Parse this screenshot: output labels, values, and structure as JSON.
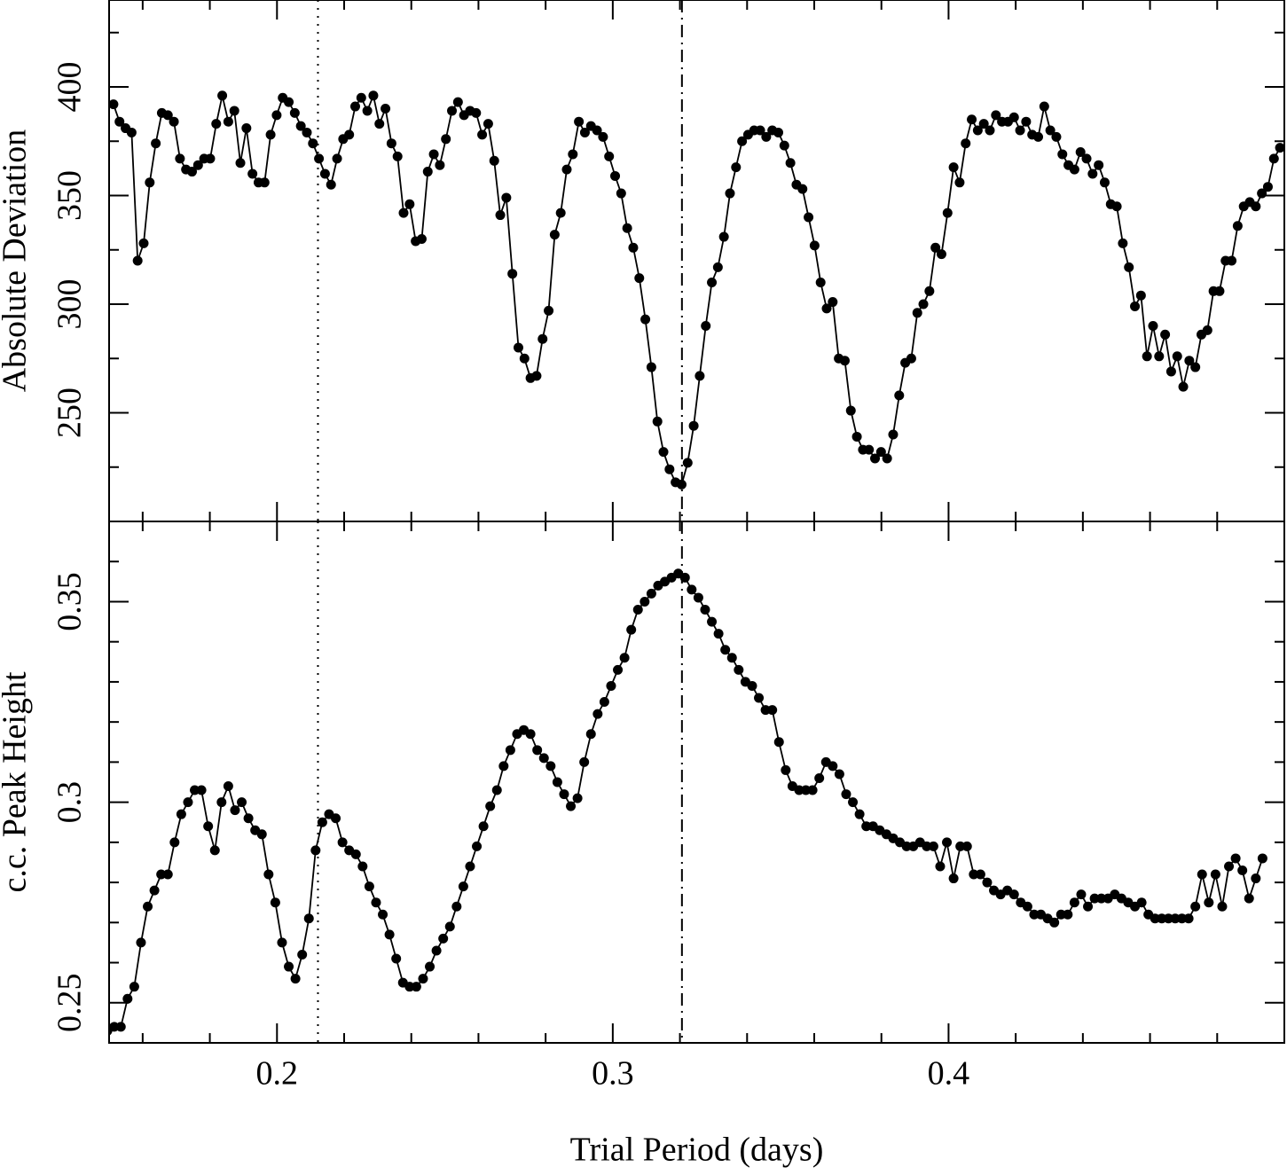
{
  "chart_data": [
    {
      "type": "line",
      "ylabel": "Absolute Deviation",
      "xlim": [
        0.15,
        0.5
      ],
      "ylim": [
        200,
        440
      ],
      "xticks": [
        0.2,
        0.3,
        0.4
      ],
      "show_xtick_labels": false,
      "x_minor_ticks": [
        0.16,
        0.18,
        0.22,
        0.24,
        0.26,
        0.28,
        0.32,
        0.34,
        0.36,
        0.38,
        0.42,
        0.44,
        0.46,
        0.48
      ],
      "yticks": [
        250,
        300,
        350,
        400
      ],
      "y_minor_ticks": [
        225,
        275,
        325,
        375,
        425
      ],
      "color": "#000000",
      "marker": "circle",
      "vlines": [
        {
          "x": 0.2122,
          "style": "dotted"
        },
        {
          "x": 0.3206,
          "style": "dashdot"
        }
      ],
      "x": [
        0.1513,
        0.1531,
        0.1549,
        0.1567,
        0.1585,
        0.1603,
        0.1621,
        0.1639,
        0.1657,
        0.1675,
        0.1693,
        0.1711,
        0.1729,
        0.1747,
        0.1765,
        0.1783,
        0.1801,
        0.1819,
        0.1837,
        0.1855,
        0.1873,
        0.1891,
        0.1909,
        0.1927,
        0.1945,
        0.1963,
        0.1981,
        0.1999,
        0.2017,
        0.2035,
        0.2053,
        0.2071,
        0.2089,
        0.2107,
        0.2125,
        0.2143,
        0.2161,
        0.2179,
        0.2197,
        0.2215,
        0.2233,
        0.2251,
        0.2269,
        0.2287,
        0.2305,
        0.2323,
        0.2341,
        0.2359,
        0.2377,
        0.2395,
        0.2413,
        0.2431,
        0.2449,
        0.2467,
        0.2485,
        0.2503,
        0.2521,
        0.2539,
        0.2557,
        0.2575,
        0.2593,
        0.2611,
        0.2629,
        0.2647,
        0.2665,
        0.2683,
        0.2701,
        0.2719,
        0.2737,
        0.2755,
        0.2773,
        0.2791,
        0.2809,
        0.2827,
        0.2845,
        0.2863,
        0.2881,
        0.2899,
        0.2917,
        0.2935,
        0.2953,
        0.2971,
        0.2989,
        0.3007,
        0.3025,
        0.3043,
        0.3061,
        0.3079,
        0.3097,
        0.3115,
        0.3133,
        0.3151,
        0.3169,
        0.3187,
        0.3205,
        0.3223,
        0.3241,
        0.3259,
        0.3277,
        0.3295,
        0.3313,
        0.3331,
        0.3349,
        0.3367,
        0.3385,
        0.3403,
        0.3421,
        0.3439,
        0.3457,
        0.3475,
        0.3493,
        0.3511,
        0.3529,
        0.3547,
        0.3565,
        0.3583,
        0.3601,
        0.3619,
        0.3637,
        0.3655,
        0.3673,
        0.3691,
        0.3709,
        0.3727,
        0.3745,
        0.3763,
        0.3781,
        0.3799,
        0.3817,
        0.3835,
        0.3853,
        0.3871,
        0.3889,
        0.3907,
        0.3925,
        0.3943,
        0.3961,
        0.3979,
        0.3997,
        0.4015,
        0.4033,
        0.4051,
        0.4069,
        0.4087,
        0.4105,
        0.4123,
        0.4141,
        0.4159,
        0.4177,
        0.4195,
        0.4213,
        0.4231,
        0.4249,
        0.4267,
        0.4285,
        0.4303,
        0.4321,
        0.4339,
        0.4357,
        0.4375,
        0.4393,
        0.4411,
        0.4429,
        0.4447,
        0.4465,
        0.4483,
        0.4501,
        0.4519,
        0.4537,
        0.4555,
        0.4573,
        0.4591,
        0.4609,
        0.4627,
        0.4645,
        0.4663,
        0.4681,
        0.4699,
        0.4717,
        0.4735,
        0.4753,
        0.4771,
        0.4789,
        0.4807,
        0.4825,
        0.4843,
        0.4861,
        0.4879,
        0.4897,
        0.4915,
        0.4933,
        0.4951,
        0.4969,
        0.4987
      ],
      "values": [
        392,
        384,
        381,
        379,
        320,
        328,
        356,
        374,
        388,
        387,
        384,
        367,
        362,
        361,
        364,
        367,
        367,
        383,
        396,
        384,
        389,
        365,
        381,
        360,
        356,
        356,
        378,
        387,
        395,
        393,
        388,
        382,
        379,
        374,
        367,
        360,
        355,
        367,
        376,
        378,
        391,
        395,
        389,
        396,
        383,
        390,
        374,
        368,
        342,
        346,
        329,
        330,
        361,
        369,
        364,
        376,
        389,
        393,
        387,
        389,
        388,
        378,
        383,
        366,
        341,
        349,
        314,
        280,
        275,
        266,
        267,
        284,
        297,
        332,
        342,
        362,
        369,
        384,
        379,
        382,
        380,
        377,
        368,
        359,
        351,
        335,
        326,
        312,
        293,
        271,
        246,
        232,
        224,
        218,
        217,
        227,
        244,
        267,
        290,
        310,
        317,
        331,
        351,
        363,
        375,
        378,
        380,
        380,
        377,
        380,
        379,
        373,
        365,
        355,
        353,
        340,
        327,
        310,
        298,
        301,
        275,
        274,
        251,
        239,
        233,
        233,
        229,
        232,
        229,
        240,
        258,
        273,
        275,
        296,
        300,
        306,
        326,
        323,
        342,
        363,
        356,
        374,
        385,
        380,
        383,
        380,
        387,
        384,
        384,
        386,
        380,
        384,
        378,
        377,
        391,
        380,
        377,
        369,
        364,
        362,
        370,
        367,
        360,
        364,
        356,
        346,
        345,
        328,
        317,
        299,
        304,
        276,
        290,
        276,
        286,
        269,
        276,
        262,
        274,
        271,
        286,
        288,
        306,
        306,
        320,
        320,
        336,
        345,
        347,
        345,
        351,
        354,
        367,
        372
      ]
    },
    {
      "type": "line",
      "ylabel": "c.c. Peak Height",
      "xlabel": "Trial Period (days)",
      "xlim": [
        0.15,
        0.5
      ],
      "ylim": [
        0.24,
        0.37
      ],
      "xticks": [
        0.2,
        0.3,
        0.4
      ],
      "show_xtick_labels": true,
      "x_minor_ticks": [
        0.16,
        0.18,
        0.22,
        0.24,
        0.26,
        0.28,
        0.32,
        0.34,
        0.36,
        0.38,
        0.42,
        0.44,
        0.46,
        0.48
      ],
      "yticks": [
        0.25,
        0.3,
        0.35
      ],
      "y_minor_ticks": [
        0.26,
        0.27,
        0.28,
        0.29,
        0.31,
        0.32,
        0.33,
        0.34,
        0.36
      ],
      "color": "#000000",
      "marker": "circle",
      "vlines": [
        {
          "x": 0.2122,
          "style": "dotted"
        },
        {
          "x": 0.3206,
          "style": "dashdot"
        }
      ],
      "x": [
        0.1495,
        0.1515,
        0.1535,
        0.1555,
        0.1575,
        0.1595,
        0.1615,
        0.1635,
        0.1655,
        0.1675,
        0.1695,
        0.1715,
        0.1735,
        0.1755,
        0.1775,
        0.1795,
        0.1815,
        0.1835,
        0.1855,
        0.1875,
        0.1895,
        0.1915,
        0.1935,
        0.1955,
        0.1975,
        0.1995,
        0.2015,
        0.2035,
        0.2055,
        0.2075,
        0.2095,
        0.2115,
        0.2135,
        0.2155,
        0.2175,
        0.2195,
        0.2215,
        0.2235,
        0.2255,
        0.2275,
        0.2295,
        0.2315,
        0.2335,
        0.2355,
        0.2375,
        0.2395,
        0.2415,
        0.2435,
        0.2455,
        0.2475,
        0.2495,
        0.2515,
        0.2535,
        0.2555,
        0.2575,
        0.2595,
        0.2615,
        0.2635,
        0.2655,
        0.2675,
        0.2695,
        0.2715,
        0.2735,
        0.2755,
        0.2775,
        0.2795,
        0.2815,
        0.2835,
        0.2855,
        0.2875,
        0.2895,
        0.2915,
        0.2935,
        0.2955,
        0.2975,
        0.2995,
        0.3015,
        0.3035,
        0.3055,
        0.3075,
        0.3095,
        0.3115,
        0.3135,
        0.3155,
        0.3175,
        0.3195,
        0.3215,
        0.3235,
        0.3255,
        0.3275,
        0.3295,
        0.3315,
        0.3335,
        0.3355,
        0.3375,
        0.3395,
        0.3415,
        0.3435,
        0.3455,
        0.3475,
        0.3495,
        0.3515,
        0.3535,
        0.3555,
        0.3575,
        0.3595,
        0.3615,
        0.3635,
        0.3655,
        0.3675,
        0.3695,
        0.3715,
        0.3735,
        0.3755,
        0.3775,
        0.3795,
        0.3815,
        0.3835,
        0.3855,
        0.3875,
        0.3895,
        0.3915,
        0.3935,
        0.3955,
        0.3975,
        0.3995,
        0.4015,
        0.4035,
        0.4055,
        0.4075,
        0.4095,
        0.4115,
        0.4135,
        0.4155,
        0.4175,
        0.4195,
        0.4215,
        0.4235,
        0.4255,
        0.4275,
        0.4295,
        0.4315,
        0.4335,
        0.4355,
        0.4375,
        0.4395,
        0.4415,
        0.4435,
        0.4455,
        0.4475,
        0.4495,
        0.4515,
        0.4535,
        0.4555,
        0.4575,
        0.4595,
        0.4615,
        0.4635,
        0.4655,
        0.4675,
        0.4695,
        0.4715,
        0.4735,
        0.4755,
        0.4775,
        0.4795,
        0.4815,
        0.4835,
        0.4855,
        0.4875,
        0.4895,
        0.4915,
        0.4935
      ],
      "values": [
        0.243,
        0.244,
        0.244,
        0.251,
        0.254,
        0.265,
        0.274,
        0.278,
        0.282,
        0.282,
        0.29,
        0.297,
        0.3,
        0.303,
        0.303,
        0.294,
        0.288,
        0.3,
        0.304,
        0.298,
        0.3,
        0.296,
        0.293,
        0.292,
        0.282,
        0.275,
        0.265,
        0.259,
        0.256,
        0.262,
        0.271,
        0.288,
        0.295,
        0.297,
        0.296,
        0.29,
        0.288,
        0.287,
        0.284,
        0.279,
        0.275,
        0.272,
        0.267,
        0.261,
        0.255,
        0.254,
        0.254,
        0.256,
        0.259,
        0.263,
        0.266,
        0.269,
        0.274,
        0.279,
        0.284,
        0.289,
        0.294,
        0.299,
        0.303,
        0.309,
        0.313,
        0.317,
        0.318,
        0.317,
        0.313,
        0.311,
        0.309,
        0.305,
        0.302,
        0.299,
        0.301,
        0.31,
        0.317,
        0.322,
        0.325,
        0.329,
        0.333,
        0.336,
        0.343,
        0.348,
        0.35,
        0.352,
        0.354,
        0.355,
        0.356,
        0.357,
        0.356,
        0.353,
        0.351,
        0.348,
        0.345,
        0.342,
        0.338,
        0.336,
        0.333,
        0.33,
        0.329,
        0.326,
        0.323,
        0.323,
        0.315,
        0.308,
        0.304,
        0.303,
        0.303,
        0.303,
        0.306,
        0.31,
        0.309,
        0.307,
        0.302,
        0.3,
        0.297,
        0.294,
        0.294,
        0.293,
        0.292,
        0.291,
        0.29,
        0.289,
        0.289,
        0.29,
        0.289,
        0.289,
        0.284,
        0.29,
        0.281,
        0.289,
        0.289,
        0.282,
        0.282,
        0.28,
        0.278,
        0.277,
        0.278,
        0.277,
        0.275,
        0.274,
        0.272,
        0.272,
        0.271,
        0.27,
        0.272,
        0.272,
        0.275,
        0.277,
        0.274,
        0.276,
        0.276,
        0.276,
        0.277,
        0.276,
        0.275,
        0.274,
        0.275,
        0.272,
        0.271,
        0.271,
        0.271,
        0.271,
        0.271,
        0.271,
        0.274,
        0.282,
        0.275,
        0.282,
        0.274,
        0.284,
        0.286,
        0.283,
        0.276,
        0.281,
        0.286
      ]
    }
  ]
}
